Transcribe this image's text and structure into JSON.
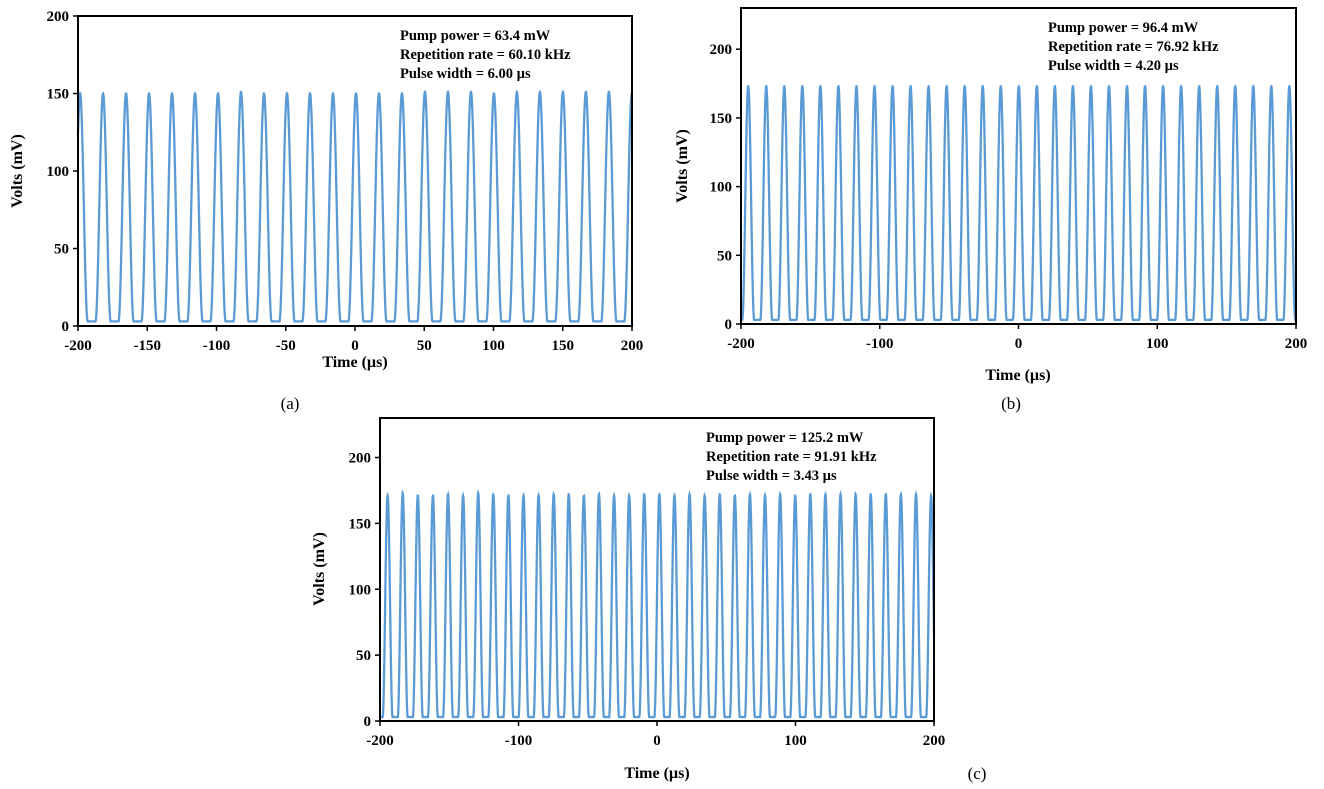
{
  "chart_data": [
    {
      "id": "a",
      "type": "line",
      "panel_label": "(a)",
      "title": "",
      "xlabel": "Time (µs)",
      "ylabel": "Volts (mV)",
      "xlim": [
        -200,
        200
      ],
      "ylim": [
        0,
        200
      ],
      "xticks": [
        -200,
        -150,
        -100,
        -50,
        0,
        50,
        100,
        150,
        200
      ],
      "xtick_labels": [
        "-200",
        "-150",
        "-100",
        "-50",
        "0",
        "50",
        "100",
        "150",
        "200"
      ],
      "yticks": [
        0,
        50,
        100,
        150,
        200
      ],
      "ytick_labels": [
        "0",
        "50",
        "100",
        "150",
        "200"
      ],
      "grid": false,
      "legend": "none",
      "annotations": [
        "Pump power = 63.4 mW",
        "Repetition rate = 60.10 kHz",
        "Pulse width = 6.00 µs"
      ],
      "series": [
        {
          "color": "#5b9bd5",
          "peak_times": [
            -198.5,
            -181.9,
            -165.3,
            -148.7,
            -132.1,
            -115.5,
            -98.9,
            -82.3,
            -65.7,
            -49.1,
            -32.5,
            -15.9,
            0.7,
            17.3,
            33.9,
            50.5,
            67.1,
            83.7,
            100.3,
            116.9,
            133.5,
            150.1,
            166.7,
            183.3
          ],
          "peak_values": [
            150,
            150,
            150,
            150,
            150,
            150,
            150,
            151,
            150,
            150,
            150,
            150,
            150,
            150,
            150,
            151,
            151,
            151,
            150,
            151,
            151,
            151,
            151,
            151
          ],
          "baseline": 3
        }
      ]
    },
    {
      "id": "b",
      "type": "line",
      "panel_label": "(b)",
      "title": "",
      "xlabel": "Time (µs)",
      "ylabel": "Volts (mV)",
      "xlim": [
        -200,
        200
      ],
      "ylim": [
        0,
        230
      ],
      "xticks": [
        -200,
        -100,
        0,
        100,
        200
      ],
      "xtick_labels": [
        "-200",
        "-100",
        "0",
        "100",
        "200"
      ],
      "yticks": [
        0,
        50,
        100,
        150,
        200
      ],
      "ytick_labels": [
        "0",
        "50",
        "100",
        "150",
        "200"
      ],
      "grid": false,
      "legend": "none",
      "annotations": [
        "Pump power = 96.4 mW",
        "Repetition rate = 76.92 kHz",
        "Pulse width = 4.20 µs"
      ],
      "series": [
        {
          "color": "#5b9bd5",
          "peak_times": [
            -194.8,
            -181.8,
            -168.8,
            -155.8,
            -142.8,
            -129.8,
            -116.8,
            -103.8,
            -90.8,
            -77.8,
            -64.8,
            -51.8,
            -38.8,
            -25.8,
            -12.8,
            0.2,
            13.2,
            26.2,
            39.2,
            52.2,
            65.2,
            78.2,
            91.2,
            104.2,
            117.2,
            130.2,
            143.2,
            156.2,
            169.2,
            182.2,
            195.2
          ],
          "peak_values": [
            173,
            173,
            173,
            173,
            173,
            173,
            173,
            173,
            173,
            173,
            173,
            173,
            173,
            173,
            173,
            173,
            173,
            173,
            173,
            173,
            173,
            173,
            173,
            173,
            173,
            173,
            173,
            173,
            173,
            173,
            173
          ],
          "baseline": 3
        }
      ]
    },
    {
      "id": "c",
      "type": "line",
      "panel_label": "(c)",
      "title": "",
      "xlabel": "Time (µs)",
      "ylabel": "Volts (mV)",
      "xlim": [
        -200,
        200
      ],
      "ylim": [
        0,
        230
      ],
      "xticks": [
        -200,
        -100,
        0,
        100,
        200
      ],
      "xtick_labels": [
        "-200",
        "-100",
        "0",
        "100",
        "200"
      ],
      "yticks": [
        0,
        50,
        100,
        150,
        200
      ],
      "ytick_labels": [
        "0",
        "50",
        "100",
        "150",
        "200"
      ],
      "grid": false,
      "legend": "none",
      "annotations": [
        "Pump power = 125.2 mW",
        "Repetition rate = 91.91 kHz",
        "Pulse width = 3.43 µs"
      ],
      "series": [
        {
          "color": "#5b9bd5",
          "peak_times": [
            -194.5,
            -183.6,
            -172.7,
            -161.8,
            -150.9,
            -140.0,
            -129.1,
            -118.2,
            -107.3,
            -96.4,
            -85.5,
            -74.6,
            -63.7,
            -52.8,
            -41.9,
            -31.0,
            -20.1,
            -9.2,
            1.7,
            12.6,
            23.5,
            34.4,
            45.3,
            56.2,
            67.1,
            78.0,
            88.9,
            99.8,
            110.7,
            121.6,
            132.5,
            143.4,
            154.3,
            165.2,
            176.1,
            187.0,
            197.9
          ],
          "peak_values": [
            171,
            173,
            171,
            171,
            172,
            171,
            173,
            172,
            171,
            171,
            171,
            172,
            172,
            171,
            172,
            171,
            171,
            172,
            172,
            171,
            172,
            171,
            172,
            171,
            172,
            171,
            172,
            171,
            172,
            172,
            172,
            172,
            172,
            172,
            172,
            172,
            171
          ],
          "baseline": 3
        }
      ]
    }
  ]
}
